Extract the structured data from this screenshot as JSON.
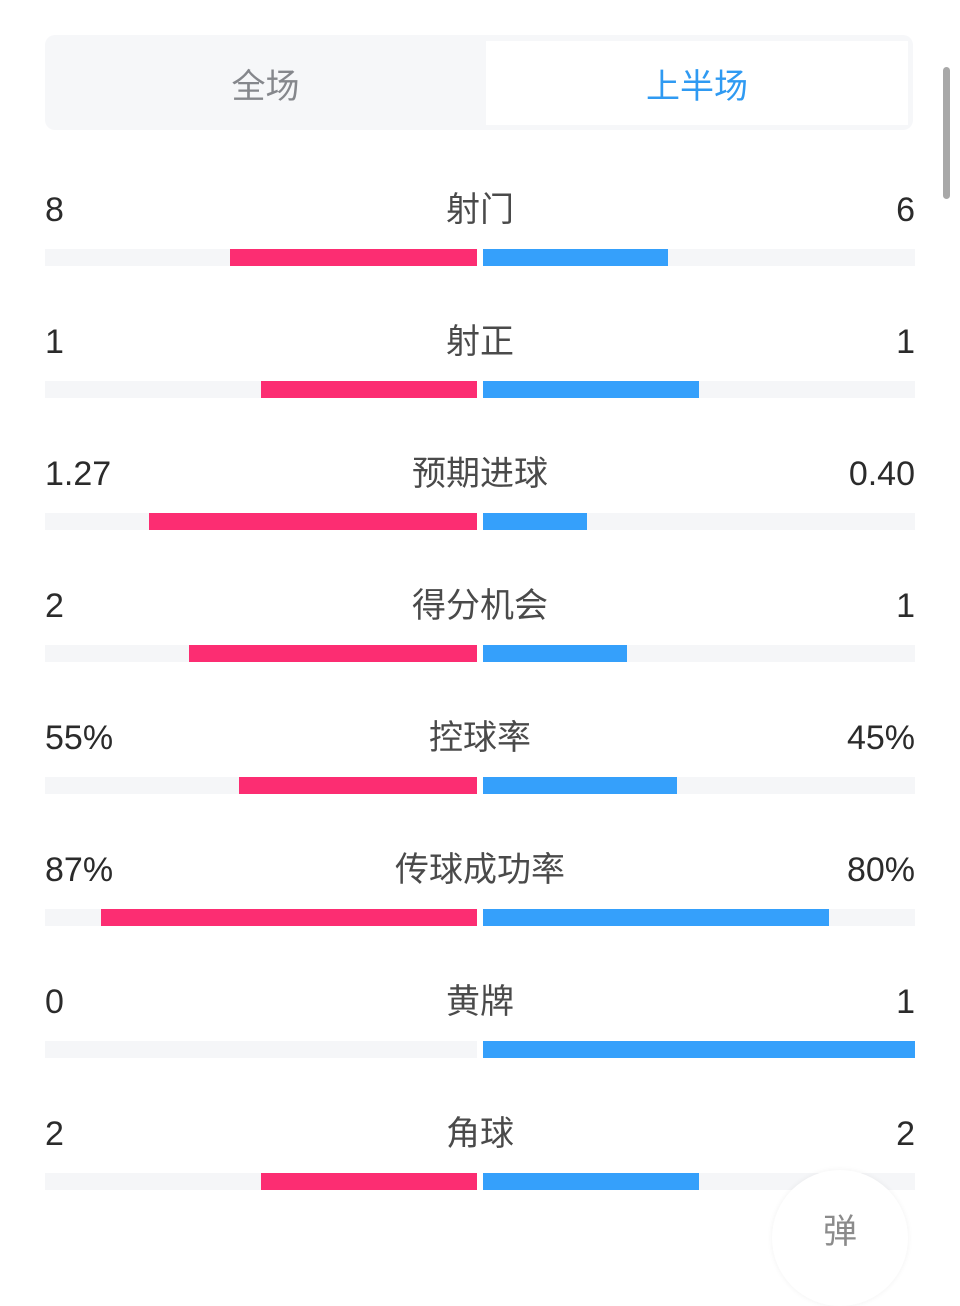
{
  "tabs": [
    {
      "label": "全场",
      "active": false
    },
    {
      "label": "上半场",
      "active": true
    }
  ],
  "colors": {
    "home": "#fc2d72",
    "away": "#35a0fb",
    "active_tab": "#2f9af2"
  },
  "stats": [
    {
      "label": "射门",
      "home": "8",
      "away": "6",
      "home_share": 0.571,
      "away_share": 0.429
    },
    {
      "label": "射正",
      "home": "1",
      "away": "1",
      "home_share": 0.5,
      "away_share": 0.5
    },
    {
      "label": "预期进球",
      "home": "1.27",
      "away": "0.40",
      "home_share": 0.76,
      "away_share": 0.24
    },
    {
      "label": "得分机会",
      "home": "2",
      "away": "1",
      "home_share": 0.667,
      "away_share": 0.333
    },
    {
      "label": "控球率",
      "home": "55%",
      "away": "45%",
      "home_share": 0.55,
      "away_share": 0.45
    },
    {
      "label": "传球成功率",
      "home": "87%",
      "away": "80%",
      "home_share": 0.87,
      "away_share": 0.8
    },
    {
      "label": "黄牌",
      "home": "0",
      "away": "1",
      "home_share": 0,
      "away_share": 1
    },
    {
      "label": "角球",
      "home": "2",
      "away": "2",
      "home_share": 0.5,
      "away_share": 0.5
    }
  ],
  "floating_button": {
    "label": "弹"
  }
}
